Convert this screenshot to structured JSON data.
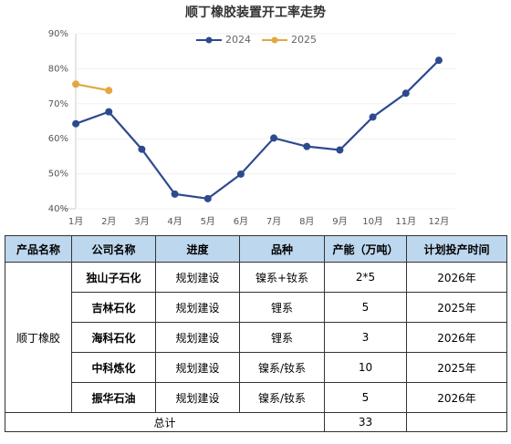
{
  "chart_data": {
    "type": "line",
    "title": "顺丁橡胶装置开工率走势",
    "categories": [
      "1月",
      "2月",
      "3月",
      "4月",
      "5月",
      "6月",
      "7月",
      "8月",
      "9月",
      "10月",
      "11月",
      "12月"
    ],
    "series": [
      {
        "name": "2024",
        "color": "#2e4a8e",
        "values": [
          64.3,
          67.7,
          57,
          44.2,
          42.9,
          49.9,
          60.2,
          57.8,
          56.8,
          66.2,
          73,
          82.4
        ]
      },
      {
        "name": "2025",
        "color": "#e2a83f",
        "values": [
          75.6,
          73.8,
          null,
          null,
          null,
          null,
          null,
          null,
          null,
          null,
          null,
          null
        ]
      }
    ],
    "ylim": [
      40,
      90
    ],
    "yticks": [
      {
        "value": 40,
        "label": "40%"
      },
      {
        "value": 50,
        "label": "50%"
      },
      {
        "value": 60,
        "label": "60%"
      },
      {
        "value": 70,
        "label": "70%"
      },
      {
        "value": 80,
        "label": "80%"
      },
      {
        "value": 90,
        "label": "90%"
      }
    ],
    "grid": true,
    "legend": "top"
  },
  "table": {
    "header": [
      "产品名称",
      "公司名称",
      "进度",
      "品种",
      "产能（万吨）",
      "计划投产时间"
    ],
    "product": "顺丁橡胶",
    "rows": [
      [
        "独山子石化",
        "规划建设",
        "镍系+钕系",
        "2*5",
        "2026年"
      ],
      [
        "吉林石化",
        "规划建设",
        "锂系",
        "5",
        "2025年"
      ],
      [
        "海科石化",
        "规划建设",
        "锂系",
        "3",
        "2026年"
      ],
      [
        "中科炼化",
        "规划建设",
        "镍系/钕系",
        "10",
        "2025年"
      ],
      [
        "振华石油",
        "规划建设",
        "镍系/钕系",
        "5",
        "2026年"
      ]
    ],
    "total_label": "总计",
    "total": "33"
  }
}
